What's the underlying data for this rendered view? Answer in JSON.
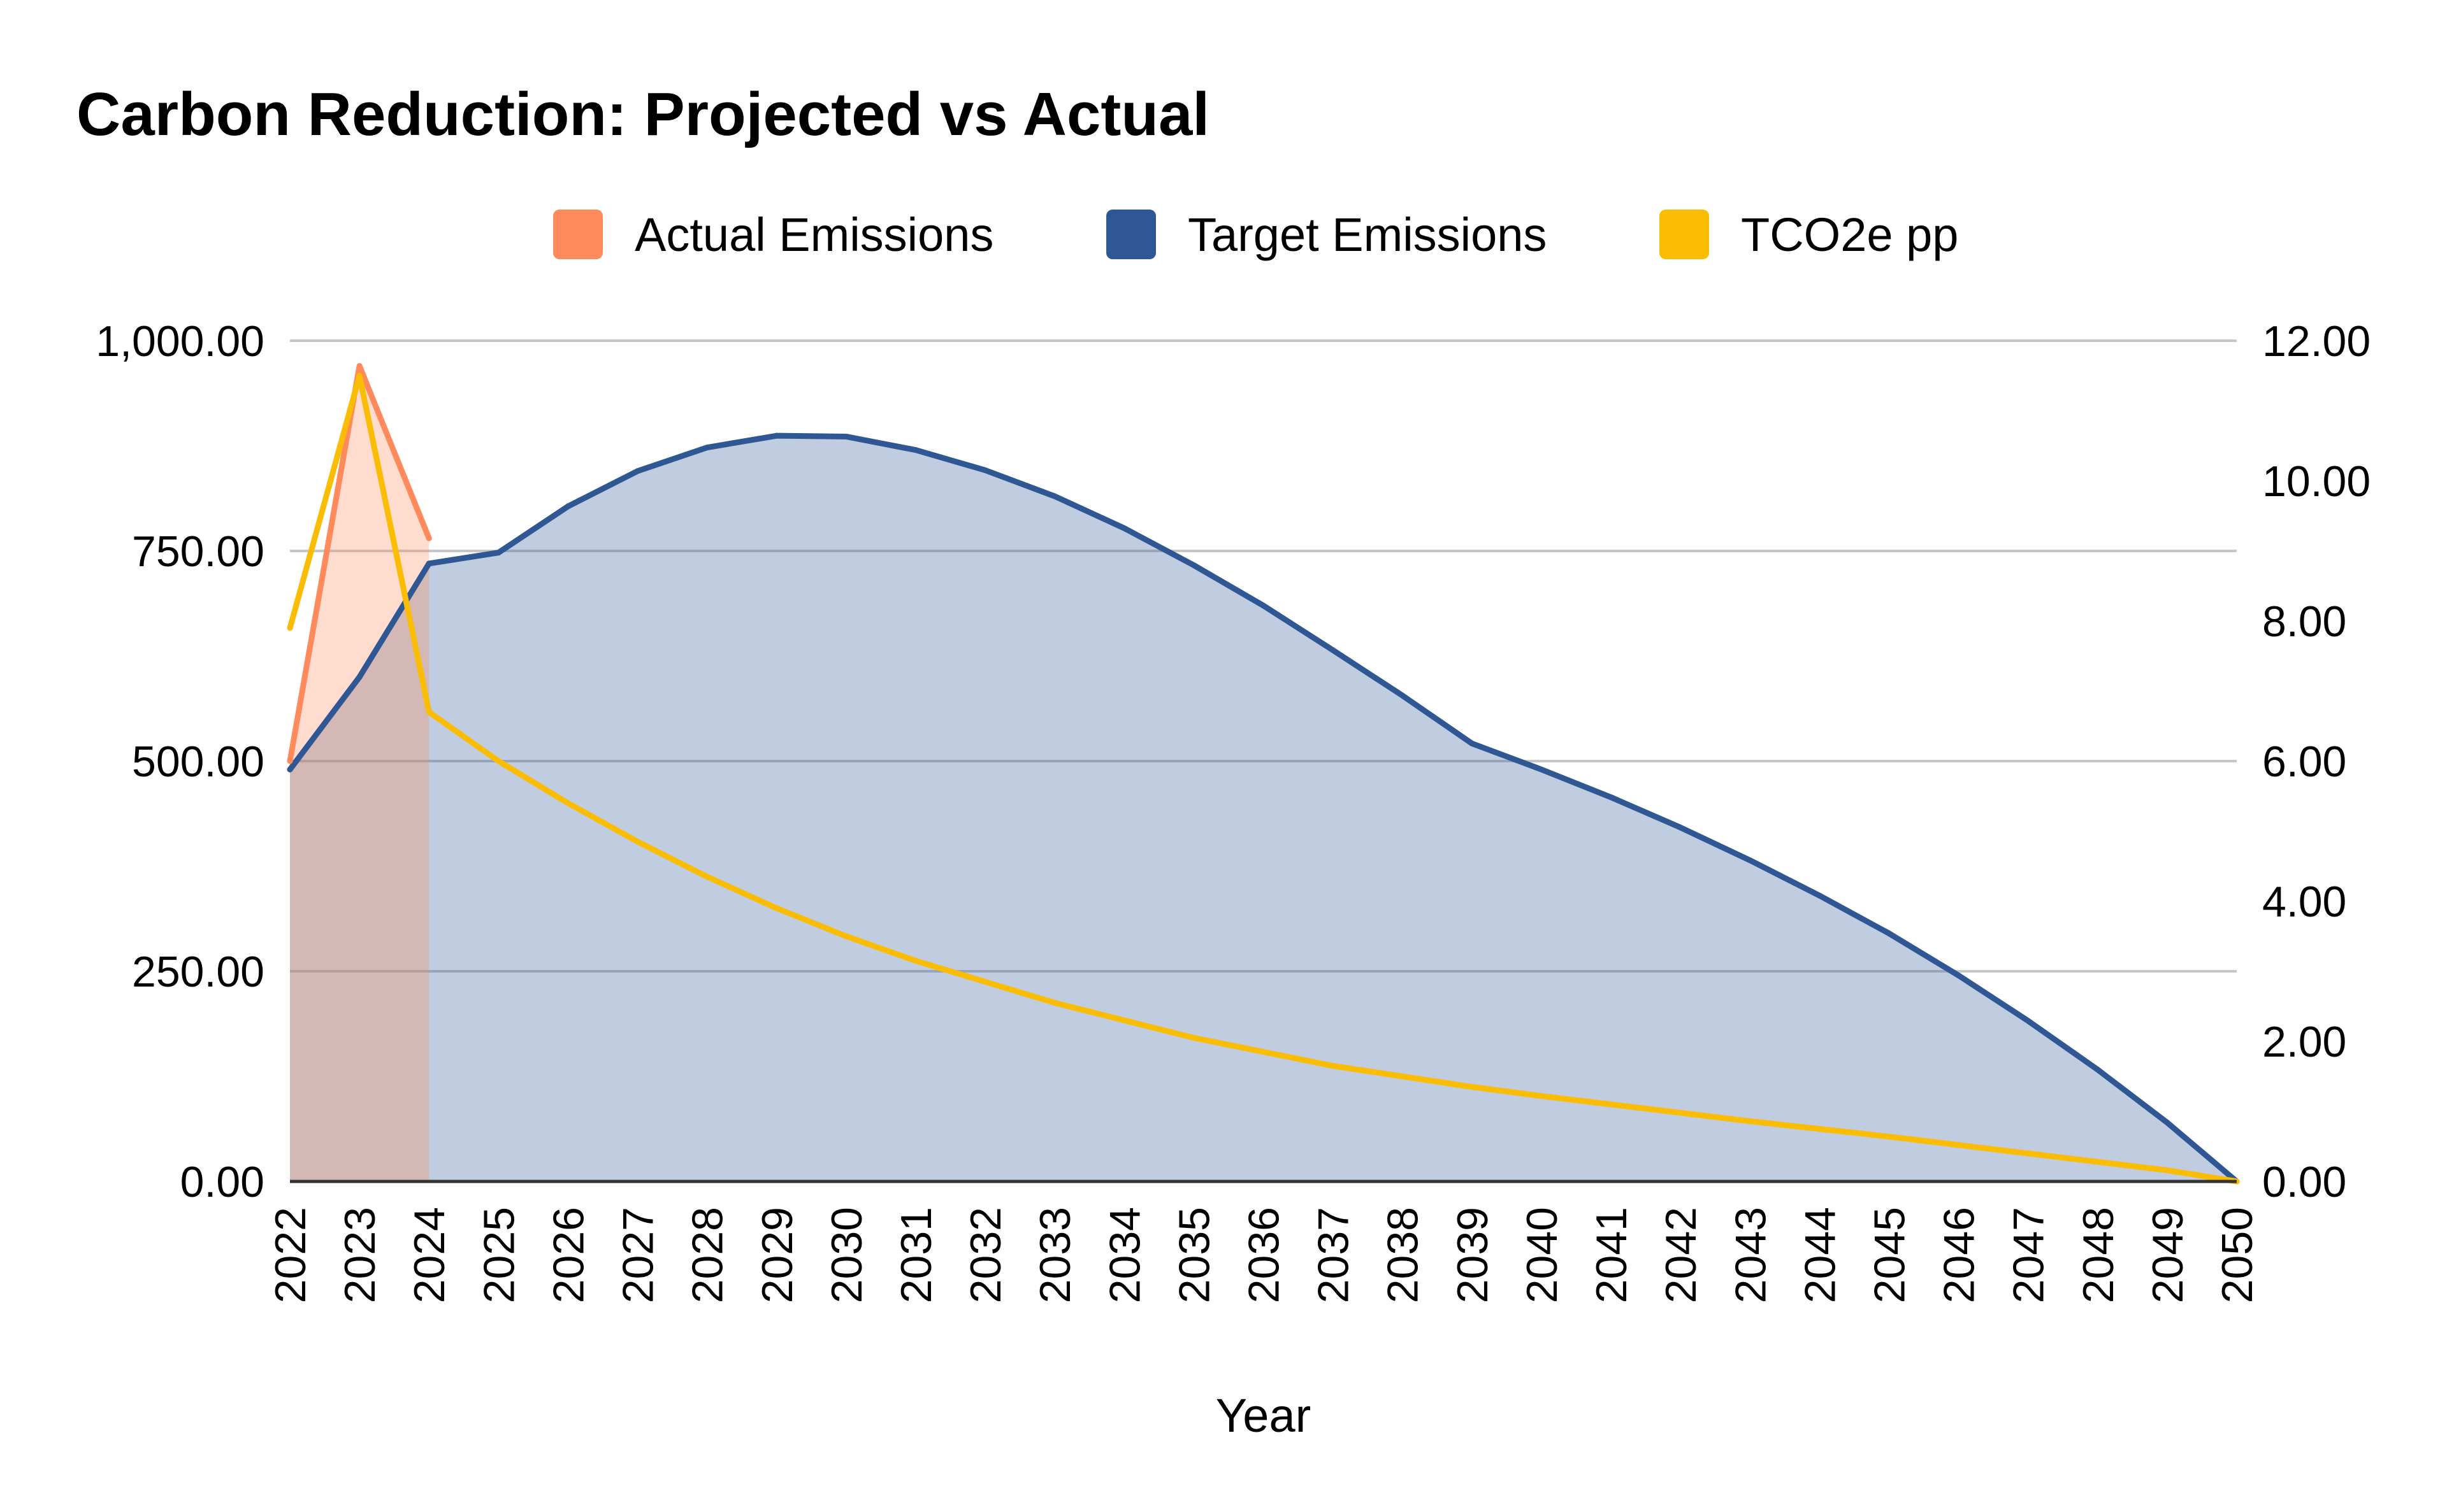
{
  "chart_data": {
    "type": "area",
    "title": "Carbon Reduction: Projected vs Actual",
    "xlabel": "Year",
    "ylabel": "",
    "y2label": "",
    "ylim": [
      0,
      1000
    ],
    "y2lim": [
      0,
      12
    ],
    "yticks": [
      "0.00",
      "250.00",
      "500.00",
      "750.00",
      "1,000.00"
    ],
    "y2ticks": [
      "0.00",
      "2.00",
      "4.00",
      "6.00",
      "8.00",
      "10.00",
      "12.00"
    ],
    "categories": [
      "2022",
      "2023",
      "2024",
      "2025",
      "2026",
      "2027",
      "2028",
      "2029",
      "2030",
      "2031",
      "2032",
      "2033",
      "2034",
      "2035",
      "2036",
      "2037",
      "2038",
      "2039",
      "2040",
      "2041",
      "2042",
      "2043",
      "2044",
      "2045",
      "2046",
      "2047",
      "2048",
      "2049",
      "2050"
    ],
    "legend_position": "top-center",
    "series": [
      {
        "name": "Actual Emissions",
        "type": "area",
        "axis": "left",
        "color": "#ff8a5b",
        "values": [
          500,
          970,
          765,
          null,
          null,
          null,
          null,
          null,
          null,
          null,
          null,
          null,
          null,
          null,
          null,
          null,
          null,
          null,
          null,
          null,
          null,
          null,
          null,
          null,
          null,
          null,
          null,
          null,
          null
        ]
      },
      {
        "name": "Target Emissions",
        "type": "area",
        "axis": "left",
        "color": "#2f5794",
        "values": [
          490,
          600,
          735,
          748,
          803,
          845,
          873,
          887,
          886,
          870,
          846,
          815,
          777,
          733,
          685,
          632,
          578,
          521,
          490,
          457,
          421,
          382,
          340,
          295,
          245,
          191,
          133,
          70,
          0
        ]
      },
      {
        "name": "TCO2e pp",
        "type": "line",
        "axis": "right",
        "color": "#fbbc04",
        "values": [
          7.9,
          11.5,
          6.7,
          6.0,
          5.4,
          4.85,
          4.35,
          3.9,
          3.5,
          3.15,
          2.85,
          2.55,
          2.3,
          2.05,
          1.85,
          1.65,
          1.5,
          1.35,
          1.22,
          1.1,
          0.98,
          0.86,
          0.75,
          0.64,
          0.52,
          0.4,
          0.28,
          0.16,
          0.0
        ]
      }
    ]
  }
}
